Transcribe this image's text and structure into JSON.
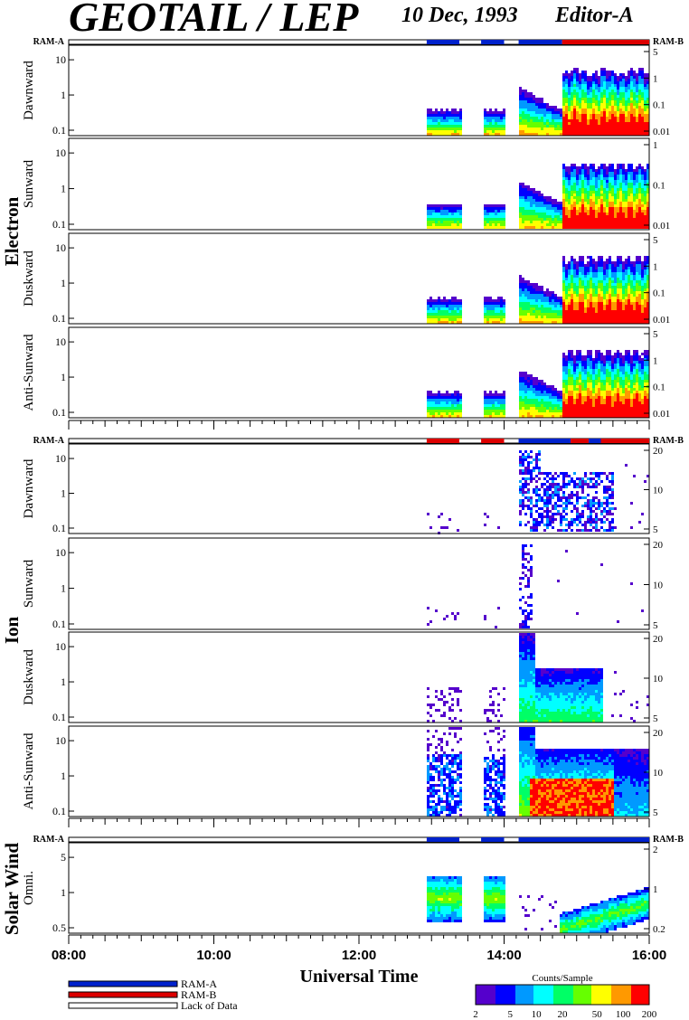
{
  "header": {
    "title": "GEOTAIL / LEP",
    "date": "10 Dec, 1993",
    "editor": "Editor-A"
  },
  "ram_labels": {
    "left": "RAM-A",
    "right": "RAM-B"
  },
  "groups": [
    "Electron",
    "Ion",
    "Solar Wind"
  ],
  "x_axis": {
    "label": "Universal Time",
    "ticks": [
      "08:00",
      "10:00",
      "12:00",
      "14:00",
      "16:00"
    ]
  },
  "legend": {
    "items": [
      "RAM-A",
      "RAM-B",
      "Lack of Data"
    ],
    "colors": [
      "#0022cc",
      "#dd0000",
      "#ffffff"
    ]
  },
  "colorbar": {
    "title": "Counts/Sample",
    "ticks": [
      "2",
      "5",
      "10",
      "20",
      "50",
      "100",
      "200"
    ],
    "colors": [
      "#5500cc",
      "#0000ff",
      "#0099ff",
      "#00ffff",
      "#00ff66",
      "#66ff00",
      "#ffff00",
      "#ff9900",
      "#ff0000"
    ]
  },
  "chart_data": {
    "type": "heatmap",
    "title": "GEOTAIL / LEP",
    "xlabel": "Universal Time",
    "xlim": [
      "08:00",
      "16:00"
    ],
    "colorbar": {
      "label": "Counts/Sample",
      "range": [
        2,
        200
      ],
      "scale": "log"
    },
    "ram_bars": [
      {
        "rows": "Electron",
        "segments": [
          [
            "12:56",
            "13:23",
            "RAM-A"
          ],
          [
            "13:41",
            "14:00",
            "RAM-A"
          ],
          [
            "14:12",
            "14:48",
            "RAM-A"
          ],
          [
            "14:48",
            "16:00",
            "RAM-B"
          ]
        ]
      },
      {
        "rows": "Ion",
        "segments": [
          [
            "12:56",
            "13:23",
            "RAM-B"
          ],
          [
            "13:41",
            "14:00",
            "RAM-B"
          ],
          [
            "14:12",
            "14:55",
            "RAM-A"
          ],
          [
            "14:55",
            "15:10",
            "RAM-B"
          ],
          [
            "15:10",
            "15:20",
            "RAM-A"
          ],
          [
            "15:20",
            "16:00",
            "RAM-B"
          ]
        ]
      },
      {
        "rows": "Solar Wind",
        "segments": [
          [
            "12:56",
            "13:23",
            "RAM-A"
          ],
          [
            "13:41",
            "14:00",
            "RAM-A"
          ],
          [
            "14:12",
            "16:00",
            "RAM-A"
          ]
        ]
      }
    ],
    "panels": [
      {
        "group": "Electron",
        "ylabel": "Dawnward",
        "left_ticks": [
          "0.1",
          "1",
          "10"
        ],
        "right_ticks": [
          "0.01",
          "0.1",
          "1",
          "5"
        ]
      },
      {
        "group": "Electron",
        "ylabel": "Sunward",
        "left_ticks": [
          "0.1",
          "1",
          "10"
        ],
        "right_ticks": [
          "0.01",
          "0.1",
          "1"
        ]
      },
      {
        "group": "Electron",
        "ylabel": "Duskward",
        "left_ticks": [
          "0.1",
          "1",
          "10"
        ],
        "right_ticks": [
          "0.01",
          "0.1",
          "1",
          "5"
        ]
      },
      {
        "group": "Electron",
        "ylabel": "Anti-Sunward",
        "left_ticks": [
          "0.1",
          "1",
          "10"
        ],
        "right_ticks": [
          "0.01",
          "0.1",
          "1",
          "5"
        ]
      },
      {
        "group": "Ion",
        "ylabel": "Dawnward",
        "left_ticks": [
          "0.1",
          "1",
          "10"
        ],
        "right_ticks": [
          "5",
          "10",
          "20"
        ]
      },
      {
        "group": "Ion",
        "ylabel": "Sunward",
        "left_ticks": [
          "0.1",
          "1",
          "10"
        ],
        "right_ticks": [
          "5",
          "10",
          "20"
        ]
      },
      {
        "group": "Ion",
        "ylabel": "Duskward",
        "left_ticks": [
          "0.1",
          "1",
          "10"
        ],
        "right_ticks": [
          "5",
          "10",
          "20"
        ]
      },
      {
        "group": "Ion",
        "ylabel": "Anti-Sunward",
        "left_ticks": [
          "0.1",
          "1",
          "10"
        ],
        "right_ticks": [
          "5",
          "10",
          "20"
        ]
      },
      {
        "group": "Solar Wind",
        "ylabel": "Omni.",
        "left_ticks": [
          "0.5",
          "1",
          "5"
        ],
        "right_ticks": [
          "0.2",
          "1",
          "2"
        ]
      }
    ]
  }
}
